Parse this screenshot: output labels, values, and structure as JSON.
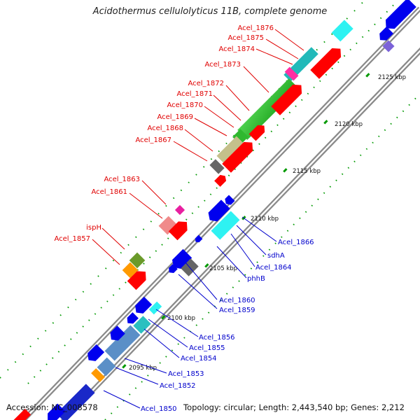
{
  "title": "Acidothermus cellulolyticus 11B, complete genome",
  "footer": {
    "accession": "Accession: NC_008578",
    "summary": "Topology: circular; Length: 2,443,540 bp; Genes: 2,212"
  },
  "scale_labels": [
    "2095 kbp",
    "2100 kbp",
    "2105 kbp",
    "2110 kbp",
    "2115 kbp",
    "2120 kbp",
    "2125 kbp"
  ],
  "gene_labels": {
    "top_strand": [
      "Acel_1876",
      "Acel_1875",
      "Acel_1874",
      "Acel_1873",
      "Acel_1872",
      "Acel_1871",
      "Acel_1870",
      "Acel_1869",
      "Acel_1868",
      "Acel_1867",
      "Acel_1863",
      "Acel_1861",
      "ispH",
      "Acel_1857"
    ],
    "bottom_strand": [
      "Acel_1866",
      "sdhA",
      "Acel_1864",
      "phhB",
      "Acel_1860",
      "Acel_1859",
      "Acel_1856",
      "Acel_1855",
      "Acel_1854",
      "Acel_1853",
      "Acel_1852",
      "Acel_1850"
    ]
  },
  "colors": {
    "top_label": "#e00000",
    "bottom_label": "#0000cc",
    "backbone": "#8a8a8a",
    "forward_gene": "#ff0000",
    "reverse_gene": "#0000ee",
    "tick": "#009900"
  }
}
